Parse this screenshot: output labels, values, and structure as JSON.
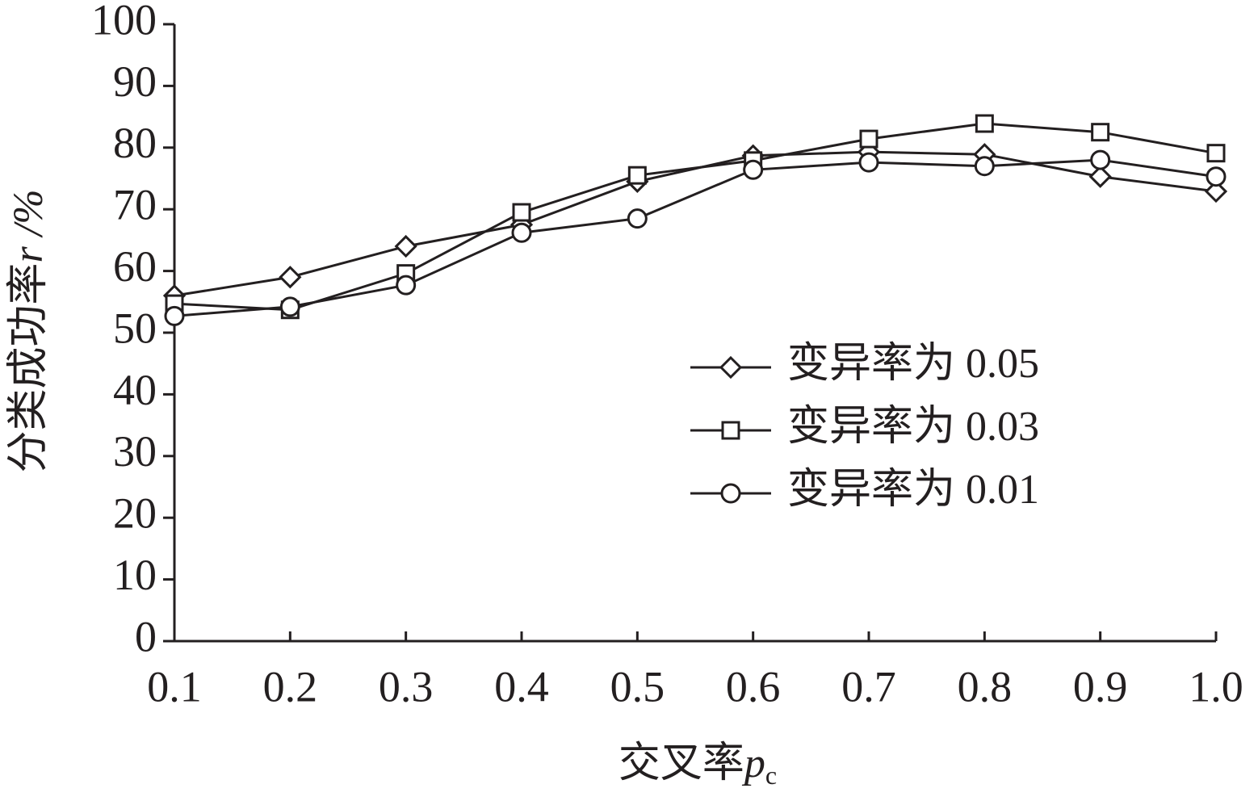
{
  "chart_data": {
    "type": "line",
    "x_label": [
      "交叉率",
      "p",
      "c"
    ],
    "y_label": [
      "分类成功率",
      "r",
      " /%"
    ],
    "categories": [
      "0.1",
      "0.2",
      "0.3",
      "0.4",
      "0.5",
      "0.6",
      "0.7",
      "0.8",
      "0.9",
      "1.0"
    ],
    "series": [
      {
        "name": "变异率为 0.05",
        "color": "#231f20",
        "marker": "diamond",
        "values": [
          56,
          59,
          64,
          67.5,
          74.5,
          78.7,
          79.3,
          78.9,
          75.3,
          72.9
        ]
      },
      {
        "name": "变异率为 0.03",
        "color": "#231f20",
        "marker": "square",
        "values": [
          54.7,
          53.7,
          59.6,
          69.5,
          75.5,
          77.9,
          81.4,
          83.9,
          82.5,
          79.1
        ]
      },
      {
        "name": "变异率为 0.01",
        "color": "#231f20",
        "marker": "circle",
        "values": [
          52.7,
          54.2,
          57.7,
          66.2,
          68.5,
          76.4,
          77.6,
          77,
          78,
          75.3
        ]
      }
    ],
    "ylim": [
      0,
      100
    ],
    "yticks": [
      0,
      10,
      20,
      30,
      40,
      50,
      60,
      70,
      80,
      90,
      100
    ],
    "grid": false,
    "legend": "right"
  }
}
